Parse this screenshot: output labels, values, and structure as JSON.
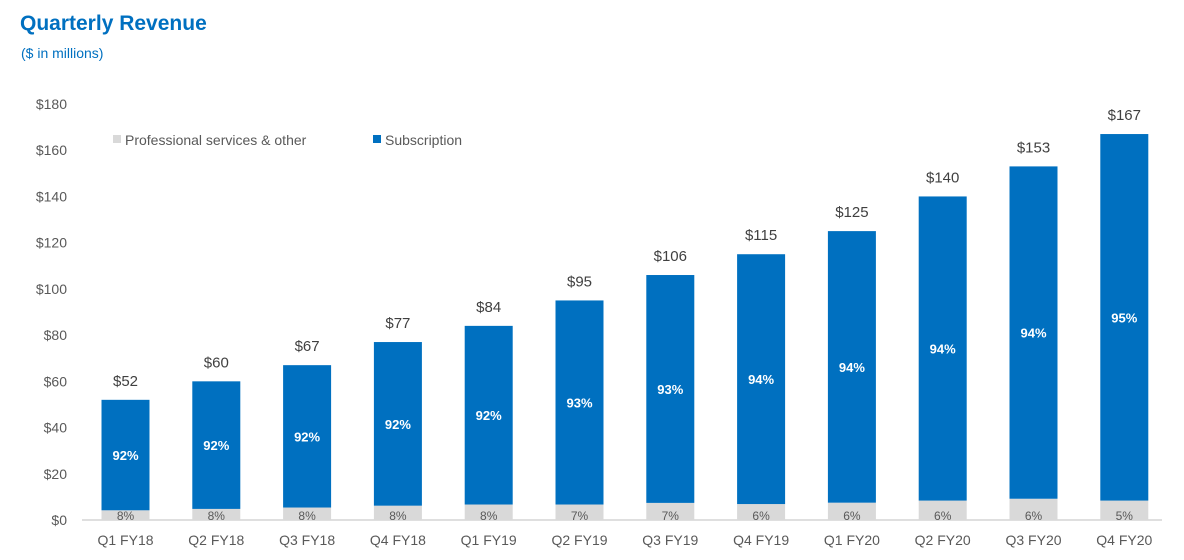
{
  "chart_data": {
    "type": "bar",
    "stacked": true,
    "title": "Quarterly Revenue",
    "subtitle": "($ in millions)",
    "categories": [
      "Q1 FY18",
      "Q2 FY18",
      "Q3 FY18",
      "Q4 FY18",
      "Q1 FY19",
      "Q2 FY19",
      "Q3 FY19",
      "Q4 FY19",
      "Q1 FY20",
      "Q2 FY20",
      "Q3 FY20",
      "Q4 FY20"
    ],
    "totals": [
      52,
      60,
      67,
      77,
      84,
      95,
      106,
      115,
      125,
      140,
      153,
      167
    ],
    "total_labels": [
      "$52",
      "$60",
      "$67",
      "$77",
      "$84",
      "$95",
      "$106",
      "$115",
      "$125",
      "$140",
      "$153",
      "$167"
    ],
    "series": [
      {
        "name": "Professional services & other",
        "color": "#d9d9d9",
        "percent_labels": [
          "8%",
          "8%",
          "8%",
          "8%",
          "8%",
          "7%",
          "7%",
          "6%",
          "6%",
          "6%",
          "6%",
          "5%"
        ],
        "values": [
          4.2,
          4.8,
          5.4,
          6.2,
          6.7,
          6.7,
          7.4,
          6.9,
          7.5,
          8.4,
          9.2,
          8.4
        ]
      },
      {
        "name": "Subscription",
        "color": "#0070c0",
        "percent_labels": [
          "92%",
          "92%",
          "92%",
          "92%",
          "92%",
          "93%",
          "93%",
          "94%",
          "94%",
          "94%",
          "94%",
          "95%"
        ],
        "values": [
          47.8,
          55.2,
          61.6,
          70.8,
          77.3,
          88.3,
          98.6,
          108.1,
          117.5,
          131.6,
          143.8,
          158.6
        ]
      }
    ],
    "ylim": [
      0,
      180
    ],
    "yticks": [
      0,
      20,
      40,
      60,
      80,
      100,
      120,
      140,
      160,
      180
    ],
    "ytick_labels": [
      "$0",
      "$20",
      "$40",
      "$60",
      "$80",
      "$100",
      "$120",
      "$140",
      "$160",
      "$180"
    ],
    "grid": false,
    "legend_position": "top-left"
  }
}
